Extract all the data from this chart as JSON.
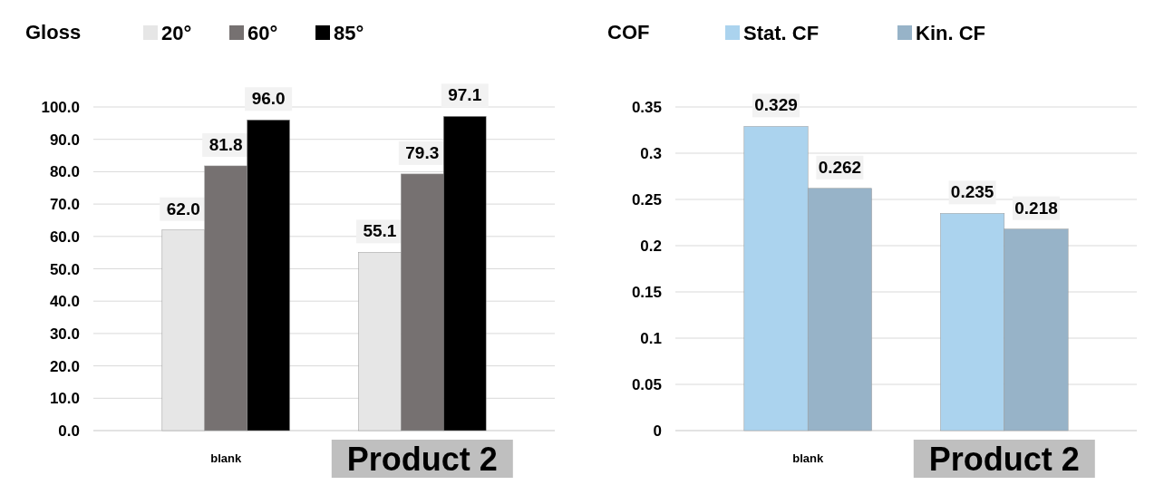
{
  "chart_data": [
    {
      "type": "bar",
      "title": "Gloss",
      "categories": [
        "blank",
        "Product 2"
      ],
      "series": [
        {
          "name": "20°",
          "color": "#e6e6e6",
          "values": [
            62.0,
            55.1
          ]
        },
        {
          "name": "60°",
          "color": "#767171",
          "values": [
            81.8,
            79.3
          ]
        },
        {
          "name": "85°",
          "color": "#000000",
          "values": [
            96.0,
            97.1
          ]
        }
      ],
      "value_labels": [
        [
          "62.0",
          "55.1"
        ],
        [
          "81.8",
          "79.3"
        ],
        [
          "96.0",
          "97.1"
        ]
      ],
      "ylim": [
        0,
        100
      ],
      "yticks": [
        {
          "value": 0,
          "label": "0.0"
        },
        {
          "value": 10,
          "label": "10.0"
        },
        {
          "value": 20,
          "label": "20.0"
        },
        {
          "value": 30,
          "label": "30.0"
        },
        {
          "value": 40,
          "label": "40.0"
        },
        {
          "value": 50,
          "label": "50.0"
        },
        {
          "value": 60,
          "label": "60.0"
        },
        {
          "value": 70,
          "label": "70.0"
        },
        {
          "value": 80,
          "label": "80.0"
        },
        {
          "value": 90,
          "label": "90.0"
        },
        {
          "value": 100,
          "label": "100.0"
        }
      ],
      "grid": "y",
      "legend": "top"
    },
    {
      "type": "bar",
      "title": "COF",
      "categories": [
        "blank",
        "Product 2"
      ],
      "series": [
        {
          "name": "Stat. CF",
          "color": "#abd3ee",
          "values": [
            0.329,
            0.235
          ]
        },
        {
          "name": "Kin. CF",
          "color": "#97b3c8",
          "values": [
            0.262,
            0.218
          ]
        }
      ],
      "data_labels": true,
      "ylim": [
        0,
        0.35
      ],
      "yticks": [
        0,
        0.05,
        0.1,
        0.15,
        0.2,
        0.25,
        0.3,
        0.35
      ],
      "grid": "y",
      "legend": "top"
    }
  ]
}
